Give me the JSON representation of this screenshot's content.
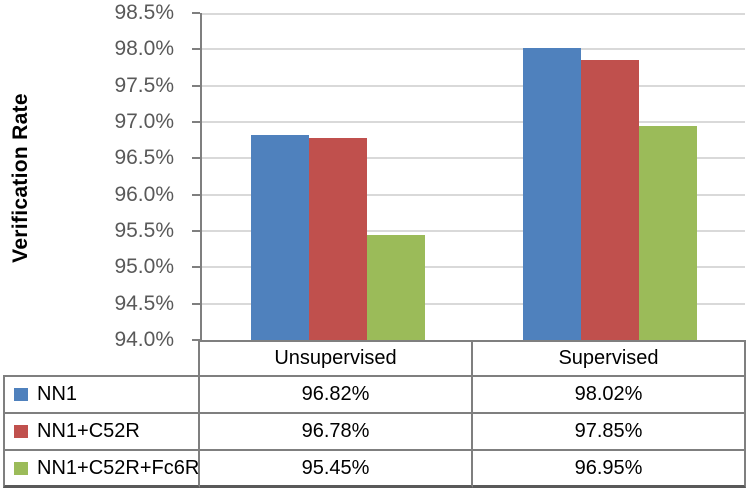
{
  "chart_data": {
    "type": "bar",
    "title": "",
    "ylabel": "Verification Rate",
    "xlabel": "",
    "categories": [
      "Unsupervised",
      "Supervised"
    ],
    "series": [
      {
        "name": "NN1",
        "color": "#4F81BD",
        "values": [
          96.82,
          98.02
        ],
        "labels": [
          "96.82%",
          "98.02%"
        ]
      },
      {
        "name": "NN1+C52R",
        "color": "#C0504D",
        "values": [
          96.78,
          97.85
        ],
        "labels": [
          "96.78%",
          "97.85%"
        ]
      },
      {
        "name": "NN1+C52R+Fc6R",
        "color": "#9BBB59",
        "values": [
          95.45,
          96.95
        ],
        "labels": [
          "95.45%",
          "96.95%"
        ]
      }
    ],
    "ylim": [
      94.0,
      98.5
    ],
    "ytick_step": 0.5,
    "yticks": [
      "98.5%",
      "98.0%",
      "97.5%",
      "97.0%",
      "96.5%",
      "96.0%",
      "95.5%",
      "95.0%",
      "94.5%",
      "94.0%"
    ],
    "grid": true,
    "legend_position": "table-left-column"
  },
  "colors": {
    "tick_label": "#595959",
    "gridline": "#D9D9D9",
    "axis_line": "#7F7F7F",
    "table_border": "#7F7F7F",
    "background": "#FFFFFF"
  }
}
